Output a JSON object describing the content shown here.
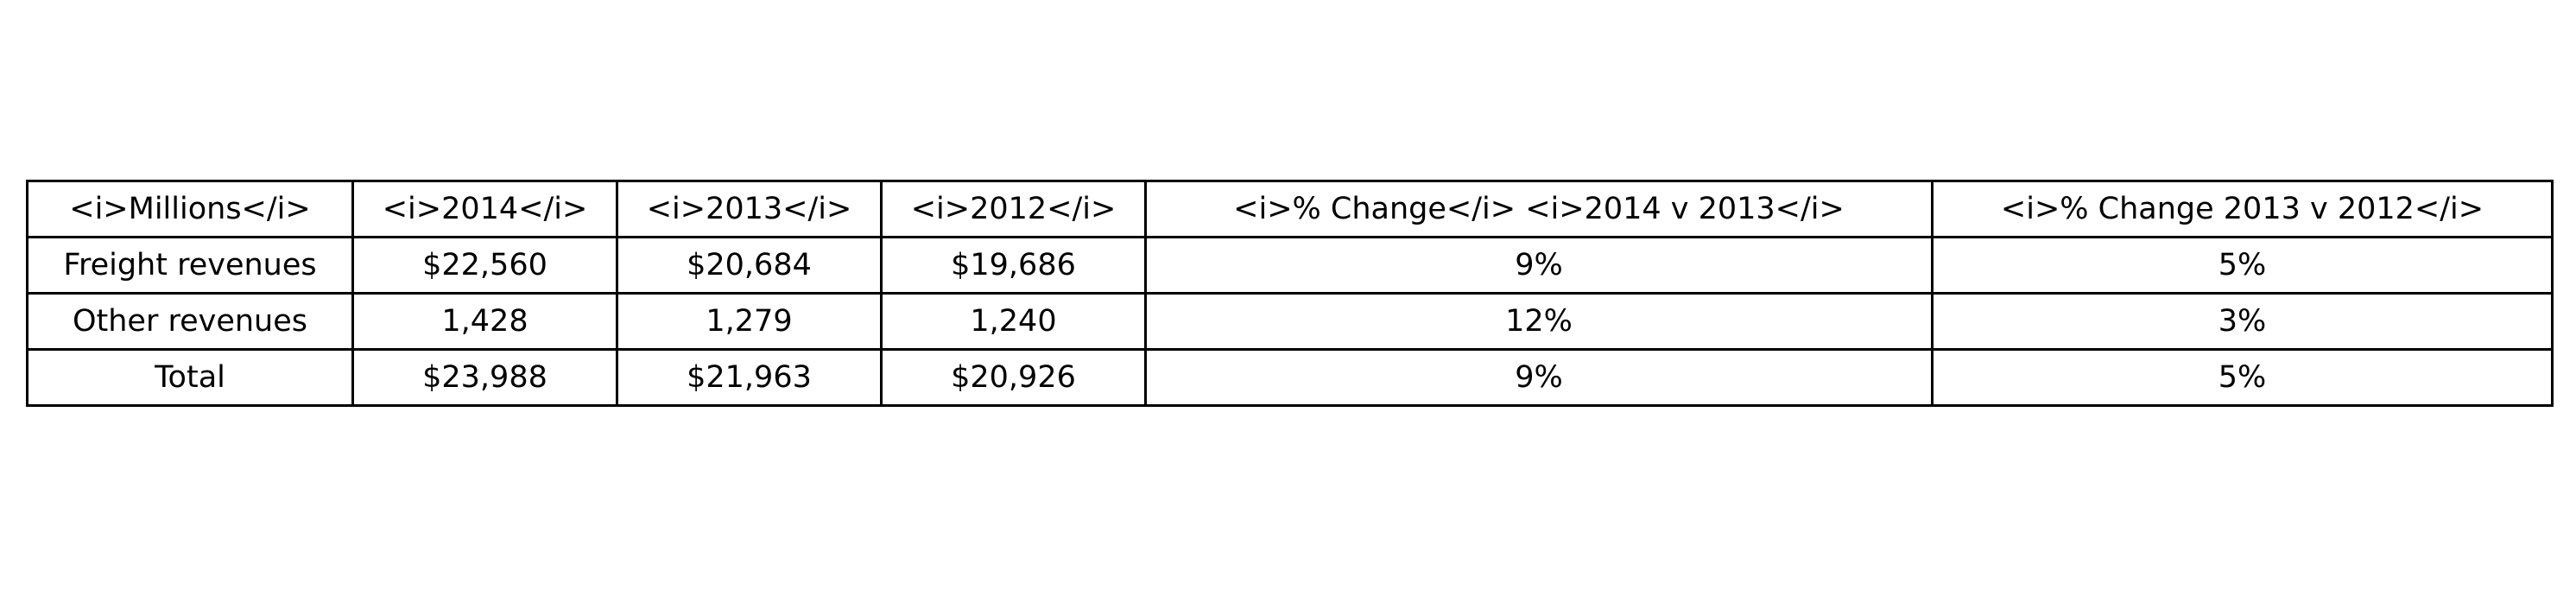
{
  "chart_data": {
    "type": "table",
    "columns": [
      "<i>Millions</i>",
      "<i>2014</i>",
      "<i>2013</i>",
      "<i>2012</i>",
      "<i>% Change</i> <i>2014 v 2013</i>",
      "<i>% Change 2013 v 2012</i>"
    ],
    "rows": [
      [
        "Freight revenues",
        "$22,560",
        "$20,684",
        "$19,686",
        "9%",
        "5%"
      ],
      [
        "Other revenues",
        "1,428",
        "1,279",
        "1,240",
        "12%",
        "3%"
      ],
      [
        "Total",
        "$23,988",
        "$21,963",
        "$20,926",
        "9%",
        "5%"
      ]
    ]
  }
}
